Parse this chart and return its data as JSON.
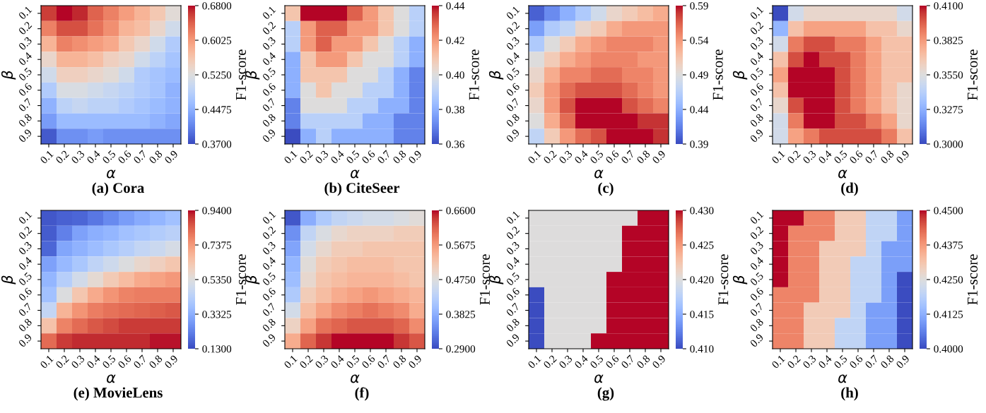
{
  "chart_data": [
    {
      "type": "heatmap",
      "title": "(a) Cora",
      "xlabel": "α",
      "ylabel": "β",
      "clabel": "F1-score",
      "categories": [
        "0.1",
        "0.2",
        "0.3",
        "0.4",
        "0.5",
        "0.6",
        "0.7",
        "0.8",
        "0.9"
      ],
      "y_categories": [
        "0.1",
        "0.2",
        "0.3",
        "0.4",
        "0.5",
        "0.6",
        "0.7",
        "0.8",
        "0.9"
      ],
      "clim": [
        0.37,
        0.68
      ],
      "cticks": [
        {
          "value": 0.37,
          "label": "0.3700"
        },
        {
          "value": 0.4475,
          "label": "0.4475"
        },
        {
          "value": 0.525,
          "label": "0.5250"
        },
        {
          "value": 0.6025,
          "label": "0.6025"
        },
        {
          "value": 0.68,
          "label": "0.6800"
        }
      ],
      "cells": [
        [
          0.66,
          0.68,
          0.67,
          0.64,
          0.62,
          0.6,
          0.58,
          0.56,
          0.53
        ],
        [
          0.62,
          0.65,
          0.65,
          0.63,
          0.61,
          0.58,
          0.57,
          0.54,
          0.51
        ],
        [
          0.58,
          0.62,
          0.61,
          0.6,
          0.59,
          0.56,
          0.54,
          0.51,
          0.48
        ],
        [
          0.54,
          0.58,
          0.58,
          0.57,
          0.55,
          0.54,
          0.51,
          0.49,
          0.47
        ],
        [
          0.51,
          0.55,
          0.55,
          0.54,
          0.53,
          0.51,
          0.48,
          0.47,
          0.46
        ],
        [
          0.48,
          0.52,
          0.52,
          0.51,
          0.5,
          0.49,
          0.48,
          0.47,
          0.45
        ],
        [
          0.45,
          0.49,
          0.5,
          0.49,
          0.49,
          0.48,
          0.47,
          0.46,
          0.45
        ],
        [
          0.43,
          0.46,
          0.46,
          0.46,
          0.46,
          0.46,
          0.46,
          0.45,
          0.44
        ],
        [
          0.38,
          0.42,
          0.42,
          0.43,
          0.42,
          0.42,
          0.42,
          0.42,
          0.42
        ]
      ]
    },
    {
      "type": "heatmap",
      "title": "(b) CiteSeer",
      "xlabel": "α",
      "ylabel": "β",
      "clabel": "F1-score",
      "categories": [
        "0.1",
        "0.2",
        "0.3",
        "0.4",
        "0.5",
        "0.6",
        "0.7",
        "0.8",
        "0.9"
      ],
      "y_categories": [
        "0.1",
        "0.2",
        "0.3",
        "0.4",
        "0.5",
        "0.6",
        "0.7",
        "0.8",
        "0.9"
      ],
      "clim": [
        0.36,
        0.44
      ],
      "cticks": [
        0.36,
        0.38,
        {
          "value": 0.4,
          "label": "0.40"
        },
        0.42,
        0.44
      ],
      "cells": [
        [
          0.41,
          0.44,
          0.44,
          0.44,
          0.43,
          0.42,
          0.41,
          0.4,
          0.39
        ],
        [
          0.39,
          0.42,
          0.43,
          0.43,
          0.42,
          0.42,
          0.41,
          0.4,
          0.39
        ],
        [
          0.39,
          0.42,
          0.43,
          0.42,
          0.42,
          0.41,
          0.4,
          0.39,
          0.38
        ],
        [
          0.38,
          0.41,
          0.42,
          0.42,
          0.41,
          0.4,
          0.4,
          0.39,
          0.38
        ],
        [
          0.38,
          0.41,
          0.41,
          0.41,
          0.4,
          0.4,
          0.39,
          0.38,
          0.37
        ],
        [
          0.38,
          0.4,
          0.41,
          0.4,
          0.4,
          0.39,
          0.39,
          0.38,
          0.37
        ],
        [
          0.37,
          0.4,
          0.4,
          0.4,
          0.39,
          0.39,
          0.38,
          0.38,
          0.37
        ],
        [
          0.37,
          0.39,
          0.39,
          0.39,
          0.39,
          0.38,
          0.38,
          0.37,
          0.37
        ],
        [
          0.36,
          0.38,
          0.39,
          0.38,
          0.38,
          0.38,
          0.38,
          0.37,
          0.37
        ]
      ]
    },
    {
      "type": "heatmap",
      "title": "(c)",
      "xlabel": "α",
      "ylabel": "β",
      "clabel": "F1-score",
      "categories": [
        "0.1",
        "0.2",
        "0.3",
        "0.4",
        "0.5",
        "0.6",
        "0.7",
        "0.8",
        "0.9"
      ],
      "y_categories": [
        "0.1",
        "0.2",
        "0.3",
        "0.4",
        "0.5",
        "0.6",
        "0.7",
        "0.8",
        "0.9"
      ],
      "clim": [
        0.39,
        0.59
      ],
      "cticks": [
        0.39,
        0.44,
        0.49,
        0.54,
        0.59
      ],
      "cells": [
        [
          0.4,
          0.42,
          0.44,
          0.46,
          0.48,
          0.5,
          0.51,
          0.52,
          0.53
        ],
        [
          0.43,
          0.46,
          0.47,
          0.5,
          0.51,
          0.53,
          0.54,
          0.54,
          0.54
        ],
        [
          0.46,
          0.49,
          0.51,
          0.53,
          0.54,
          0.55,
          0.55,
          0.55,
          0.54
        ],
        [
          0.49,
          0.51,
          0.53,
          0.54,
          0.55,
          0.55,
          0.55,
          0.54,
          0.54
        ],
        [
          0.5,
          0.53,
          0.55,
          0.55,
          0.56,
          0.56,
          0.55,
          0.55,
          0.54
        ],
        [
          0.51,
          0.54,
          0.56,
          0.57,
          0.57,
          0.57,
          0.56,
          0.55,
          0.54
        ],
        [
          0.5,
          0.54,
          0.57,
          0.59,
          0.59,
          0.59,
          0.57,
          0.56,
          0.55
        ],
        [
          0.49,
          0.53,
          0.56,
          0.59,
          0.59,
          0.59,
          0.59,
          0.58,
          0.58
        ],
        [
          0.47,
          0.51,
          0.54,
          0.56,
          0.57,
          0.59,
          0.59,
          0.59,
          0.58
        ]
      ]
    },
    {
      "type": "heatmap",
      "title": "(d)",
      "xlabel": "α",
      "ylabel": "β",
      "clabel": "F1-score",
      "categories": [
        "0.1",
        "0.2",
        "0.3",
        "0.4",
        "0.5",
        "0.6",
        "0.7",
        "0.8",
        "0.9"
      ],
      "y_categories": [
        "0.1",
        "0.2",
        "0.3",
        "0.4",
        "0.5",
        "0.6",
        "0.7",
        "0.8",
        "0.9"
      ],
      "clim": [
        0.3,
        0.41
      ],
      "cticks": [
        {
          "value": 0.3,
          "label": "0.3000"
        },
        {
          "value": 0.3275,
          "label": "0.3275"
        },
        {
          "value": 0.355,
          "label": "0.3550"
        },
        {
          "value": 0.3825,
          "label": "0.3825"
        },
        {
          "value": 0.41,
          "label": "0.4100"
        }
      ],
      "cells": [
        [
          0.3,
          0.35,
          0.36,
          0.36,
          0.36,
          0.36,
          0.36,
          0.36,
          0.35
        ],
        [
          0.33,
          0.37,
          0.38,
          0.38,
          0.38,
          0.38,
          0.37,
          0.37,
          0.36
        ],
        [
          0.35,
          0.39,
          0.4,
          0.4,
          0.39,
          0.39,
          0.38,
          0.37,
          0.37
        ],
        [
          0.37,
          0.4,
          0.41,
          0.4,
          0.4,
          0.39,
          0.38,
          0.37,
          0.37
        ],
        [
          0.38,
          0.41,
          0.41,
          0.41,
          0.4,
          0.39,
          0.38,
          0.37,
          0.37
        ],
        [
          0.37,
          0.41,
          0.41,
          0.41,
          0.4,
          0.39,
          0.38,
          0.37,
          0.36
        ],
        [
          0.36,
          0.4,
          0.41,
          0.41,
          0.4,
          0.39,
          0.38,
          0.37,
          0.36
        ],
        [
          0.35,
          0.39,
          0.41,
          0.41,
          0.4,
          0.4,
          0.39,
          0.38,
          0.36
        ],
        [
          0.35,
          0.38,
          0.39,
          0.4,
          0.4,
          0.4,
          0.4,
          0.39,
          0.37
        ]
      ]
    },
    {
      "type": "heatmap",
      "title": "(e) MovieLens",
      "xlabel": "α",
      "ylabel": "β",
      "clabel": "F1-score",
      "categories": [
        "0.1",
        "0.2",
        "0.3",
        "0.4",
        "0.5",
        "0.6",
        "0.7",
        "0.8",
        "0.9"
      ],
      "y_categories": [
        "0.1",
        "0.2",
        "0.3",
        "0.4",
        "0.5",
        "0.6",
        "0.7",
        "0.8",
        "0.9"
      ],
      "clim": [
        0.13,
        0.94
      ],
      "cticks": [
        {
          "value": 0.13,
          "label": "0.1300"
        },
        {
          "value": 0.3325,
          "label": "0.3325"
        },
        {
          "value": 0.535,
          "label": "0.5350"
        },
        {
          "value": 0.7375,
          "label": "0.7375"
        },
        {
          "value": 0.94,
          "label": "0.9400"
        }
      ],
      "cells": [
        [
          0.15,
          0.17,
          0.18,
          0.21,
          0.25,
          0.29,
          0.32,
          0.35,
          0.38
        ],
        [
          0.16,
          0.23,
          0.3,
          0.33,
          0.35,
          0.38,
          0.4,
          0.42,
          0.44
        ],
        [
          0.18,
          0.31,
          0.34,
          0.37,
          0.4,
          0.43,
          0.46,
          0.48,
          0.51
        ],
        [
          0.3,
          0.36,
          0.4,
          0.45,
          0.49,
          0.53,
          0.57,
          0.6,
          0.63
        ],
        [
          0.35,
          0.43,
          0.5,
          0.56,
          0.62,
          0.66,
          0.7,
          0.72,
          0.74
        ],
        [
          0.38,
          0.53,
          0.63,
          0.7,
          0.75,
          0.78,
          0.79,
          0.79,
          0.79
        ],
        [
          0.46,
          0.68,
          0.75,
          0.79,
          0.81,
          0.82,
          0.83,
          0.84,
          0.85
        ],
        [
          0.64,
          0.78,
          0.82,
          0.85,
          0.87,
          0.89,
          0.89,
          0.89,
          0.89
        ],
        [
          0.82,
          0.89,
          0.91,
          0.91,
          0.91,
          0.91,
          0.91,
          0.93,
          0.93
        ]
      ]
    },
    {
      "type": "heatmap",
      "title": "(f)",
      "xlabel": "α",
      "ylabel": "β",
      "clabel": "F1-score",
      "categories": [
        "0.1",
        "0.2",
        "0.3",
        "0.4",
        "0.5",
        "0.6",
        "0.7",
        "0.8",
        "0.9"
      ],
      "y_categories": [
        "0.1",
        "0.2",
        "0.3",
        "0.4",
        "0.5",
        "0.6",
        "0.7",
        "0.8",
        "0.9"
      ],
      "clim": [
        0.29,
        0.66
      ],
      "cticks": [
        {
          "value": 0.29,
          "label": "0.2900"
        },
        {
          "value": 0.3825,
          "label": "0.3825"
        },
        {
          "value": 0.475,
          "label": "0.4750"
        },
        {
          "value": 0.5675,
          "label": "0.5675"
        },
        {
          "value": 0.66,
          "label": "0.6600"
        }
      ],
      "cells": [
        [
          0.3,
          0.38,
          0.42,
          0.44,
          0.45,
          0.46,
          0.46,
          0.47,
          0.48
        ],
        [
          0.35,
          0.44,
          0.47,
          0.49,
          0.5,
          0.5,
          0.5,
          0.51,
          0.51
        ],
        [
          0.37,
          0.46,
          0.49,
          0.51,
          0.51,
          0.52,
          0.52,
          0.52,
          0.52
        ],
        [
          0.39,
          0.48,
          0.51,
          0.52,
          0.53,
          0.53,
          0.53,
          0.52,
          0.52
        ],
        [
          0.4,
          0.49,
          0.52,
          0.53,
          0.54,
          0.54,
          0.54,
          0.53,
          0.52
        ],
        [
          0.42,
          0.51,
          0.53,
          0.55,
          0.56,
          0.57,
          0.56,
          0.55,
          0.54
        ],
        [
          0.46,
          0.53,
          0.56,
          0.58,
          0.59,
          0.6,
          0.59,
          0.58,
          0.55
        ],
        [
          0.5,
          0.56,
          0.6,
          0.61,
          0.62,
          0.62,
          0.62,
          0.61,
          0.58
        ],
        [
          0.55,
          0.61,
          0.64,
          0.66,
          0.66,
          0.66,
          0.66,
          0.64,
          0.62
        ]
      ]
    },
    {
      "type": "heatmap",
      "title": "(g)",
      "xlabel": "α",
      "ylabel": "β",
      "clabel": "F1-score",
      "categories": [
        "0.1",
        "0.2",
        "0.3",
        "0.4",
        "0.5",
        "0.6",
        "0.7",
        "0.8",
        "0.9"
      ],
      "y_categories": [
        "0.1",
        "0.2",
        "0.3",
        "0.4",
        "0.5",
        "0.6",
        "0.7",
        "0.8",
        "0.9"
      ],
      "clim": [
        0.41,
        0.43
      ],
      "cticks": [
        {
          "value": 0.41,
          "label": "0.410"
        },
        {
          "value": 0.415,
          "label": "0.415"
        },
        {
          "value": 0.42,
          "label": "0.420"
        },
        {
          "value": 0.425,
          "label": "0.425"
        },
        {
          "value": 0.43,
          "label": "0.430"
        }
      ],
      "cells": [
        [
          0.42,
          0.42,
          0.42,
          0.42,
          0.42,
          0.42,
          0.42,
          0.43,
          0.43
        ],
        [
          0.42,
          0.42,
          0.42,
          0.42,
          0.42,
          0.42,
          0.43,
          0.43,
          0.43
        ],
        [
          0.42,
          0.42,
          0.42,
          0.42,
          0.42,
          0.42,
          0.43,
          0.43,
          0.43
        ],
        [
          0.42,
          0.42,
          0.42,
          0.42,
          0.42,
          0.42,
          0.43,
          0.43,
          0.43
        ],
        [
          0.42,
          0.42,
          0.42,
          0.42,
          0.42,
          0.43,
          0.43,
          0.43,
          0.43
        ],
        [
          0.41,
          0.42,
          0.42,
          0.42,
          0.42,
          0.43,
          0.43,
          0.43,
          0.43
        ],
        [
          0.41,
          0.42,
          0.42,
          0.42,
          0.42,
          0.43,
          0.43,
          0.43,
          0.43
        ],
        [
          0.41,
          0.42,
          0.42,
          0.42,
          0.42,
          0.43,
          0.43,
          0.43,
          0.43
        ],
        [
          0.41,
          0.42,
          0.42,
          0.42,
          0.43,
          0.43,
          0.43,
          0.43,
          0.43
        ]
      ]
    },
    {
      "type": "heatmap",
      "title": "(h)",
      "xlabel": "α",
      "ylabel": "β",
      "clabel": "F1-score",
      "categories": [
        "0.1",
        "0.2",
        "0.3",
        "0.4",
        "0.5",
        "0.6",
        "0.7",
        "0.8",
        "0.9"
      ],
      "y_categories": [
        "0.1",
        "0.2",
        "0.3",
        "0.4",
        "0.5",
        "0.6",
        "0.7",
        "0.8",
        "0.9"
      ],
      "clim": [
        0.4,
        0.45
      ],
      "cticks": [
        {
          "value": 0.4,
          "label": "0.4000"
        },
        {
          "value": 0.4125,
          "label": "0.4125"
        },
        {
          "value": 0.425,
          "label": "0.4250"
        },
        {
          "value": 0.4375,
          "label": "0.4375"
        },
        {
          "value": 0.45,
          "label": "0.4500"
        }
      ],
      "cells": [
        [
          0.45,
          0.45,
          0.44,
          0.44,
          0.43,
          0.43,
          0.42,
          0.42,
          0.41
        ],
        [
          0.45,
          0.44,
          0.44,
          0.44,
          0.43,
          0.43,
          0.42,
          0.42,
          0.41
        ],
        [
          0.45,
          0.44,
          0.44,
          0.43,
          0.43,
          0.43,
          0.42,
          0.41,
          0.41
        ],
        [
          0.45,
          0.44,
          0.44,
          0.43,
          0.43,
          0.42,
          0.42,
          0.41,
          0.41
        ],
        [
          0.45,
          0.44,
          0.44,
          0.43,
          0.43,
          0.42,
          0.42,
          0.41,
          0.4
        ],
        [
          0.44,
          0.44,
          0.44,
          0.43,
          0.43,
          0.42,
          0.42,
          0.41,
          0.4
        ],
        [
          0.44,
          0.44,
          0.43,
          0.43,
          0.43,
          0.42,
          0.41,
          0.41,
          0.4
        ],
        [
          0.44,
          0.44,
          0.43,
          0.43,
          0.42,
          0.42,
          0.41,
          0.41,
          0.4
        ],
        [
          0.44,
          0.44,
          0.43,
          0.43,
          0.42,
          0.42,
          0.41,
          0.41,
          0.4
        ]
      ]
    }
  ]
}
